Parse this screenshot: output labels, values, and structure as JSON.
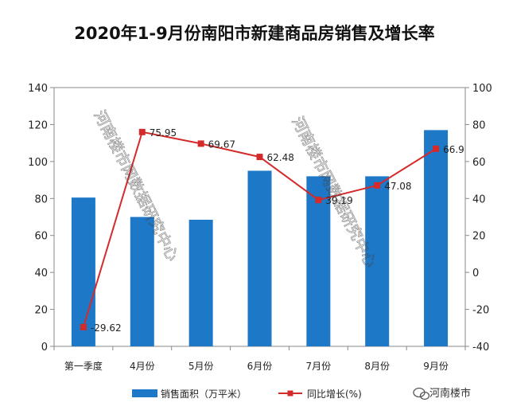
{
  "chart_data": {
    "type": "bar+line",
    "title": "2020年1-9月份南阳市新建商品房销售及增长率",
    "categories": [
      "第一季度",
      "4月份",
      "5月份",
      "6月份",
      "7月份",
      "8月份",
      "9月份"
    ],
    "series": [
      {
        "name": "销售面积（万平米）",
        "type": "bar",
        "axis": "left",
        "values": [
          80.5,
          70,
          68.5,
          95,
          92,
          92,
          117
        ],
        "color": "#1e78c8"
      },
      {
        "name": "同比增长(%)",
        "type": "line",
        "axis": "right",
        "values": [
          -29.62,
          75.95,
          69.67,
          62.48,
          39.19,
          47.08,
          66.9
        ],
        "labels": [
          "-29.62",
          "75.95",
          "69.67",
          "62.48",
          "39.19",
          "47.08",
          "66.9"
        ],
        "color": "#d42a2a"
      }
    ],
    "y_left": {
      "min": 0,
      "max": 140,
      "ticks": [
        "0",
        "20",
        "40",
        "60",
        "80",
        "100",
        "120",
        "140"
      ]
    },
    "y_right": {
      "min": -40,
      "max": 100,
      "ticks": [
        "-40",
        "-20",
        "0",
        "20",
        "40",
        "60",
        "80",
        "100"
      ]
    },
    "grid": false,
    "legend_position": "bottom"
  },
  "watermark": {
    "text": "河南楼市网数据研究中心"
  },
  "brand": {
    "text": "河南楼市",
    "icon": "wechat-icon"
  }
}
